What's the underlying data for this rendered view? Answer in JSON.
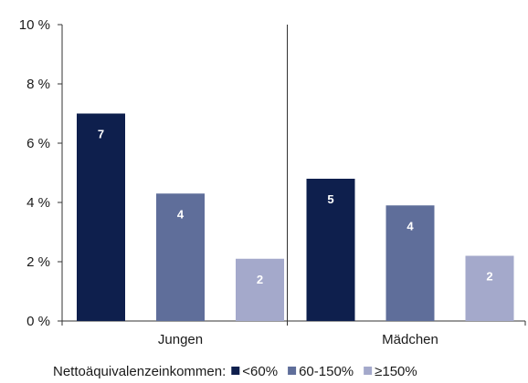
{
  "chart_data": {
    "type": "bar",
    "categories": [
      "Jungen",
      "Mädchen"
    ],
    "series": [
      {
        "name": "<60%",
        "values": [
          7.0,
          4.8
        ],
        "labels": [
          "7",
          "5"
        ],
        "color": "#0e1f4d"
      },
      {
        "name": "60-150%",
        "values": [
          4.3,
          3.9
        ],
        "labels": [
          "4",
          "4"
        ],
        "color": "#5f6e9a"
      },
      {
        "name": "≥150%",
        "values": [
          2.1,
          2.2
        ],
        "labels": [
          "2",
          "2"
        ],
        "color": "#a4a9cb"
      }
    ],
    "ylim": [
      0,
      10
    ],
    "yticks": [
      0,
      2,
      4,
      6,
      8,
      10
    ],
    "ytick_labels": [
      "0 %",
      "2 %",
      "4 %",
      "6 %",
      "8 %",
      "10 %"
    ],
    "legend_title": "Nettoäquivalenzeinkommen:",
    "legend_position": "bottom",
    "grid": false
  }
}
